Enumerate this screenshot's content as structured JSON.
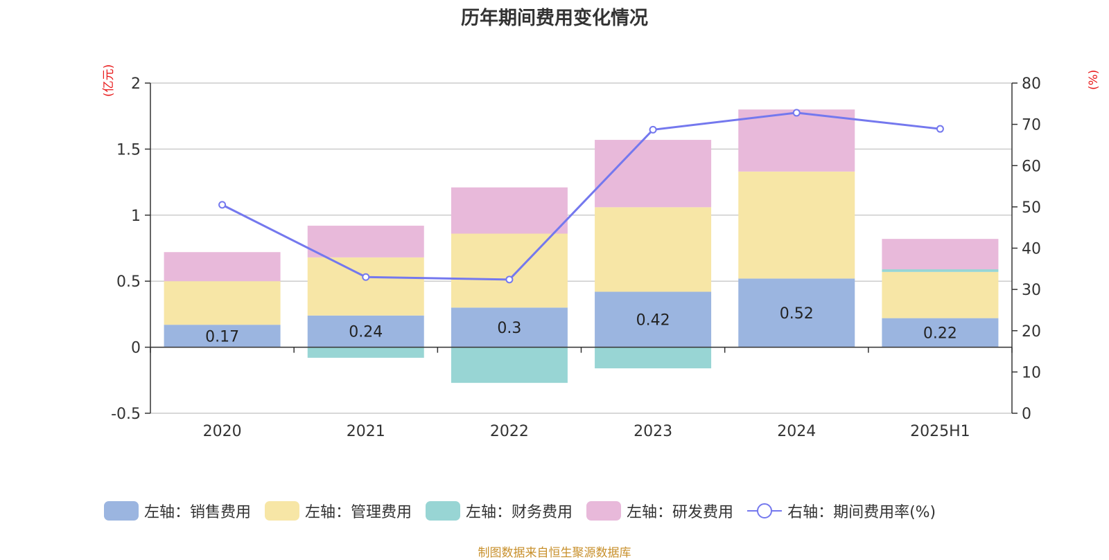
{
  "chart_data": {
    "type": "bar",
    "title": "历年期间费用变化情况",
    "categories": [
      "2020",
      "2021",
      "2022",
      "2023",
      "2024",
      "2025H1"
    ],
    "left_axis": {
      "unit": "(亿元)",
      "ylim": [
        -0.5,
        2
      ],
      "ticks": [
        "2",
        "1.5",
        "1",
        "0.5",
        "0",
        "-0.5"
      ]
    },
    "right_axis": {
      "unit": "(%)",
      "ylim": [
        0,
        80
      ],
      "ticks": [
        "80",
        "70",
        "60",
        "50",
        "40",
        "30",
        "20",
        "10",
        "0"
      ]
    },
    "series": [
      {
        "name": "左轴：销售费用",
        "axis": "left",
        "kind": "bar",
        "color": "#9bb5e0",
        "values": [
          0.17,
          0.24,
          0.3,
          0.42,
          0.52,
          0.22
        ],
        "labels": [
          "0.17",
          "0.24",
          "0.3",
          "0.42",
          "0.52",
          "0.22"
        ]
      },
      {
        "name": "左轴：管理费用",
        "axis": "left",
        "kind": "bar",
        "color": "#f7e6a6",
        "values": [
          0.33,
          0.44,
          0.56,
          0.64,
          0.81,
          0.35
        ]
      },
      {
        "name": "左轴：财务费用",
        "axis": "left",
        "kind": "bar",
        "color": "#98d5d4",
        "values": [
          0.0,
          -0.08,
          -0.27,
          -0.16,
          0.0,
          0.02
        ]
      },
      {
        "name": "左轴：研发费用",
        "axis": "left",
        "kind": "bar",
        "color": "#e8b9da",
        "values": [
          0.22,
          0.24,
          0.35,
          0.51,
          0.47,
          0.23
        ]
      },
      {
        "name": "右轴：期间费用率(%)",
        "axis": "right",
        "kind": "line",
        "color": "#7478ee",
        "values": [
          50.5,
          33.0,
          32.4,
          68.7,
          72.8,
          68.9
        ]
      }
    ],
    "grid": true,
    "legend_position": "bottom"
  },
  "source_note": "制图数据来自恒生聚源数据库"
}
